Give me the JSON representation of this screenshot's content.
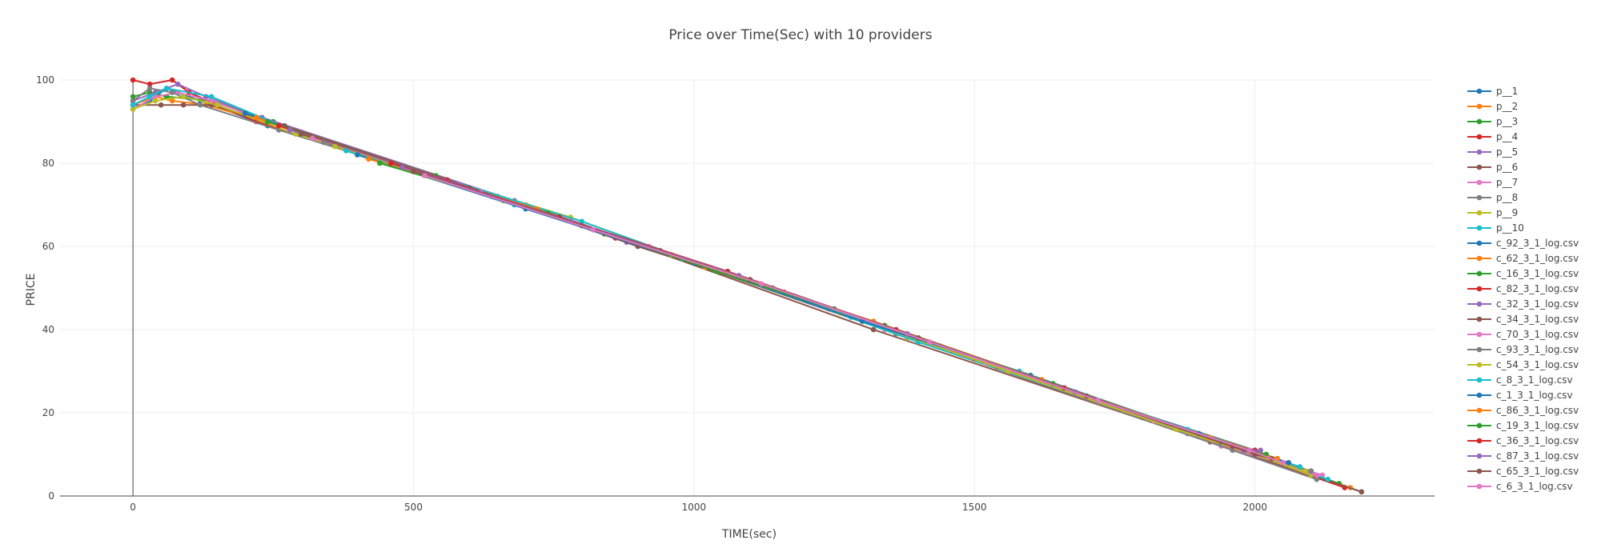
{
  "chart_data": {
    "type": "line",
    "title": "Price over Time(Sec) with 10 providers",
    "xlabel": "TIME(sec)",
    "ylabel": "PRICE",
    "xlim": [
      -130,
      2320
    ],
    "ylim": [
      0,
      100
    ],
    "x_ticks": [
      0,
      500,
      1000,
      1500,
      2000
    ],
    "y_ticks": [
      0,
      20,
      40,
      60,
      80,
      100
    ],
    "grid": true,
    "legend_position": "right",
    "series": [
      {
        "name": "p__1",
        "color": "#1f77b4",
        "x": [
          0,
          30,
          60,
          120,
          240,
          600,
          1200,
          1800,
          2190
        ],
        "y": [
          93,
          95,
          98,
          95,
          89,
          74,
          47,
          19,
          1
        ]
      },
      {
        "name": "p__2",
        "color": "#ff7f0e",
        "x": [
          0,
          40,
          70,
          130,
          260,
          700,
          1300,
          1900,
          2170
        ],
        "y": [
          94,
          96,
          95,
          94,
          89,
          70,
          42,
          15,
          2
        ]
      },
      {
        "name": "p__3",
        "color": "#2ca02c",
        "x": [
          0,
          30,
          60,
          140,
          250,
          650,
          1250,
          1850,
          2150
        ],
        "y": [
          96,
          97,
          96,
          95,
          90,
          72,
          45,
          17,
          3
        ]
      },
      {
        "name": "p__4",
        "color": "#d62728",
        "x": [
          0,
          30,
          70,
          100,
          220,
          620,
          1220,
          1820,
          2160
        ],
        "y": [
          100,
          99,
          100,
          97,
          90,
          73,
          46,
          18,
          2
        ]
      },
      {
        "name": "p__5",
        "color": "#9467bd",
        "x": [
          0,
          40,
          80,
          130,
          230,
          680,
          1280,
          1880,
          2120
        ],
        "y": [
          95,
          97,
          99,
          96,
          91,
          71,
          43,
          15,
          5
        ]
      },
      {
        "name": "p__6",
        "color": "#8c564b",
        "x": [
          0,
          50,
          90,
          140,
          270,
          720,
          1320,
          1920,
          2190
        ],
        "y": [
          94,
          94,
          94,
          94,
          89,
          69,
          40,
          13,
          1
        ]
      },
      {
        "name": "p__7",
        "color": "#e377c2",
        "x": [
          0,
          40,
          80,
          140,
          280,
          740,
          1340,
          1940,
          2120
        ],
        "y": [
          93,
          96,
          97,
          95,
          88,
          68,
          40,
          12,
          5
        ]
      },
      {
        "name": "p__8",
        "color": "#7f7f7f",
        "x": [
          0,
          30,
          70,
          120,
          260,
          760,
          1360,
          1960,
          2110
        ],
        "y": [
          95,
          98,
          97,
          94,
          88,
          67,
          39,
          11,
          4
        ]
      },
      {
        "name": "p__9",
        "color": "#bcbd22",
        "x": [
          0,
          40,
          90,
          150,
          290,
          780,
          1380,
          1980,
          2100
        ],
        "y": [
          93,
          95,
          96,
          94,
          87,
          67,
          38,
          11,
          5
        ]
      },
      {
        "name": "p__10",
        "color": "#17becf",
        "x": [
          0,
          30,
          60,
          140,
          300,
          800,
          1400,
          2000,
          2130
        ],
        "y": [
          94,
          96,
          98,
          96,
          87,
          66,
          37,
          10,
          4
        ]
      },
      {
        "name": "c_92_3_1_log.csv",
        "color": "#1f77b4",
        "x": [
          200,
          500,
          800,
          1100,
          1400,
          1700,
          2000
        ],
        "y": [
          92,
          78,
          65,
          52,
          38,
          24,
          11
        ]
      },
      {
        "name": "c_62_3_1_log.csv",
        "color": "#ff7f0e",
        "x": [
          220,
          520,
          820,
          1120,
          1420,
          1720,
          2020
        ],
        "y": [
          91,
          77,
          64,
          51,
          37,
          23,
          10
        ]
      },
      {
        "name": "c_16_3_1_log.csv",
        "color": "#2ca02c",
        "x": [
          240,
          540,
          840,
          1140,
          1440,
          1740,
          2040
        ],
        "y": [
          90,
          77,
          63,
          50,
          36,
          22,
          9
        ]
      },
      {
        "name": "c_82_3_1_log.csv",
        "color": "#d62728",
        "x": [
          260,
          560,
          860,
          1160,
          1460,
          1760,
          2060
        ],
        "y": [
          89,
          76,
          62,
          49,
          35,
          21,
          8
        ]
      },
      {
        "name": "c_32_3_1_log.csv",
        "color": "#9467bd",
        "x": [
          280,
          580,
          880,
          1180,
          1480,
          1780,
          2080
        ],
        "y": [
          88,
          75,
          61,
          48,
          34,
          20,
          7
        ]
      },
      {
        "name": "c_34_3_1_log.csv",
        "color": "#8c564b",
        "x": [
          300,
          600,
          900,
          1200,
          1500,
          1800,
          2100
        ],
        "y": [
          87,
          74,
          60,
          47,
          33,
          19,
          6
        ]
      },
      {
        "name": "c_70_3_1_log.csv",
        "color": "#e377c2",
        "x": [
          320,
          620,
          920,
          1220,
          1520,
          1820,
          2110
        ],
        "y": [
          86,
          73,
          60,
          46,
          32,
          18,
          5
        ]
      },
      {
        "name": "c_93_3_1_log.csv",
        "color": "#7f7f7f",
        "x": [
          340,
          640,
          940,
          1240,
          1540,
          1840,
          2100
        ],
        "y": [
          85,
          72,
          59,
          45,
          31,
          17,
          6
        ]
      },
      {
        "name": "c_54_3_1_log.csv",
        "color": "#bcbd22",
        "x": [
          360,
          660,
          960,
          1260,
          1560,
          1860,
          2090
        ],
        "y": [
          84,
          71,
          58,
          44,
          30,
          16,
          6
        ]
      },
      {
        "name": "c_8_3_1_log.csv",
        "color": "#17becf",
        "x": [
          380,
          680,
          980,
          1280,
          1580,
          1880,
          2080
        ],
        "y": [
          83,
          70,
          57,
          43,
          30,
          16,
          7
        ]
      },
      {
        "name": "c_1_3_1_log.csv",
        "color": "#1f77b4",
        "x": [
          400,
          700,
          1000,
          1300,
          1600,
          1900,
          2060
        ],
        "y": [
          82,
          69,
          56,
          42,
          29,
          15,
          8
        ]
      },
      {
        "name": "c_86_3_1_log.csv",
        "color": "#ff7f0e",
        "x": [
          420,
          720,
          1020,
          1320,
          1620,
          1920,
          2040
        ],
        "y": [
          81,
          69,
          55,
          42,
          28,
          14,
          9
        ]
      },
      {
        "name": "c_19_3_1_log.csv",
        "color": "#2ca02c",
        "x": [
          440,
          740,
          1040,
          1340,
          1640,
          1940,
          2020
        ],
        "y": [
          80,
          68,
          54,
          41,
          27,
          13,
          10
        ]
      },
      {
        "name": "c_36_3_1_log.csv",
        "color": "#d62728",
        "x": [
          460,
          760,
          1060,
          1360,
          1660,
          1960,
          2000
        ],
        "y": [
          80,
          67,
          54,
          40,
          26,
          12,
          11
        ]
      },
      {
        "name": "c_87_3_1_log.csv",
        "color": "#9467bd",
        "x": [
          480,
          780,
          1080,
          1380,
          1680,
          1980,
          2010
        ],
        "y": [
          79,
          66,
          53,
          39,
          25,
          11,
          11
        ]
      },
      {
        "name": "c_65_3_1_log.csv",
        "color": "#8c564b",
        "x": [
          500,
          800,
          1100,
          1400,
          1700,
          2000,
          2030
        ],
        "y": [
          78,
          65,
          52,
          38,
          24,
          10,
          9
        ]
      },
      {
        "name": "c_6_3_1_log.csv",
        "color": "#e377c2",
        "x": [
          520,
          820,
          1120,
          1420,
          1720,
          1990,
          2050
        ],
        "y": [
          77,
          64,
          51,
          37,
          23,
          11,
          8
        ]
      }
    ]
  }
}
